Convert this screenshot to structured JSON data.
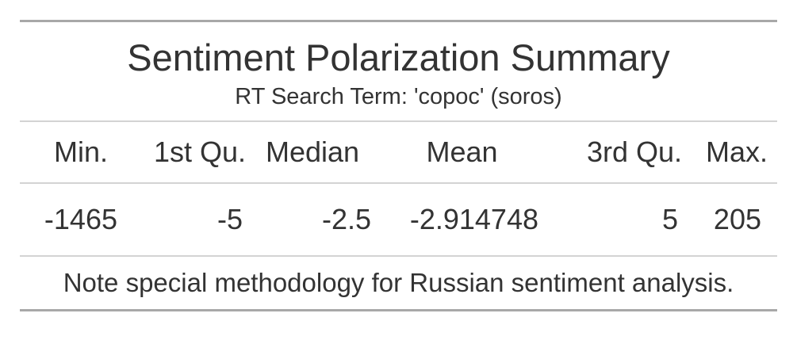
{
  "table": {
    "title": "Sentiment Polarization Summary",
    "subtitle": "RT Search Term: 'copoc' (soros)",
    "columns": [
      "Min.",
      "1st Qu.",
      "Median",
      "Mean",
      "3rd Qu.",
      "Max."
    ],
    "rows": [
      [
        "-1465",
        "-5",
        "-2.5",
        "-2.914748",
        "5",
        "205"
      ]
    ],
    "footnote": "Note special methodology for Russian sentiment analysis."
  },
  "colors": {
    "text": "#333333",
    "outer_rule": "#a8a8a8",
    "inner_rule": "#d3d3d3",
    "background": "#ffffff"
  }
}
